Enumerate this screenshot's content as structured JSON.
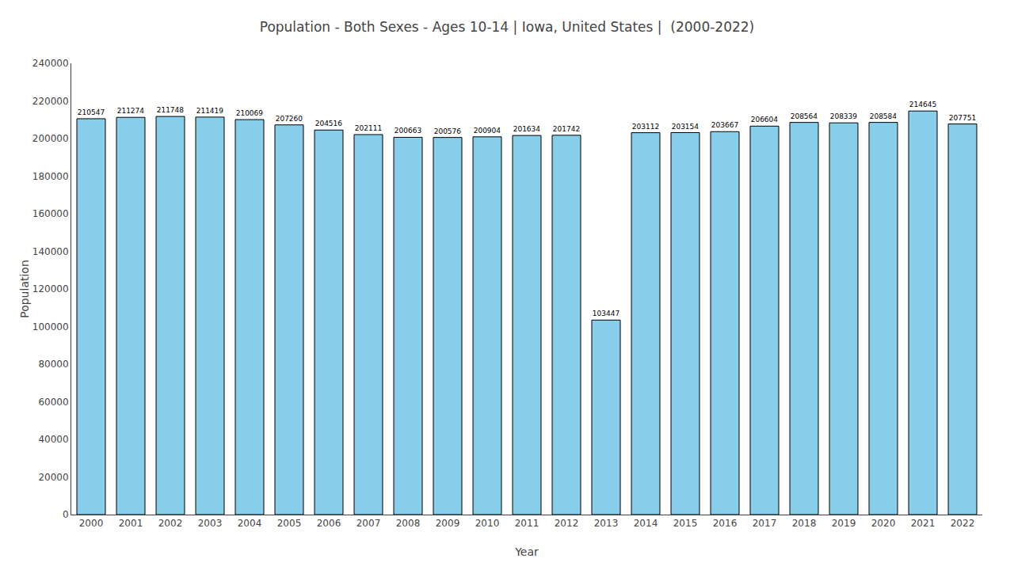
{
  "chart_data": {
    "type": "bar",
    "title": "Population - Both Sexes - Ages 10-14 | Iowa, United States |  (2000-2022)",
    "x_label": "Year",
    "y_label": "Population",
    "categories": [
      "2000",
      "2001",
      "2002",
      "2003",
      "2004",
      "2005",
      "2006",
      "2007",
      "2008",
      "2009",
      "2010",
      "2011",
      "2012",
      "2013",
      "2014",
      "2015",
      "2016",
      "2017",
      "2018",
      "2019",
      "2020",
      "2021",
      "2022"
    ],
    "values": [
      210547,
      211274,
      211748,
      211419,
      210069,
      207260,
      204516,
      202111,
      200663,
      200576,
      200904,
      201634,
      201742,
      103447,
      203112,
      203154,
      203667,
      206604,
      208564,
      208339,
      208584,
      214645,
      207751
    ],
    "color": "#87CEEB",
    "ylim": [
      0,
      240000
    ],
    "yticks": [
      0,
      20000,
      40000,
      60000,
      80000,
      100000,
      120000,
      140000,
      160000,
      180000,
      200000,
      220000,
      240000
    ],
    "grid": false,
    "data_labels": true
  }
}
